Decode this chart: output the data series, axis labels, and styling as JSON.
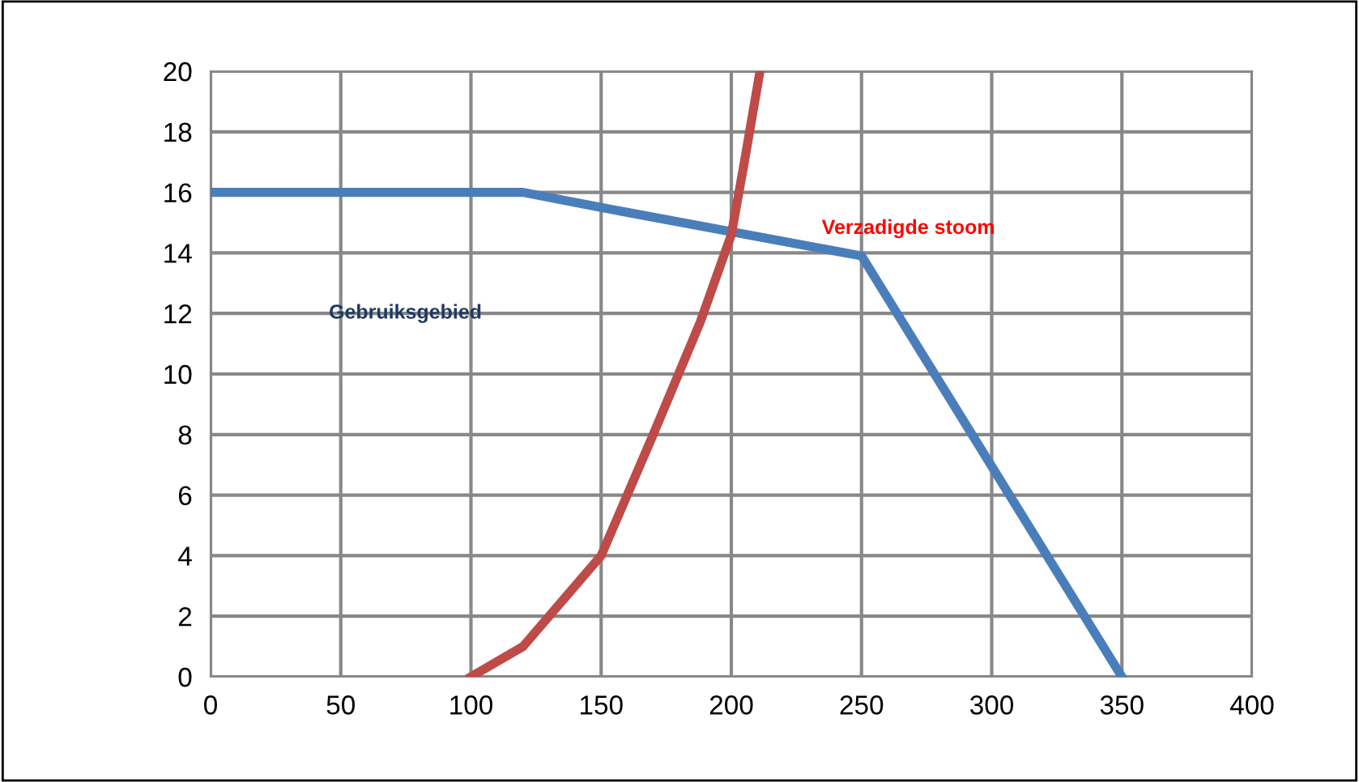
{
  "chart_data": {
    "type": "line",
    "xlim": [
      0,
      400
    ],
    "xticks": [
      0,
      50,
      100,
      150,
      200,
      250,
      300,
      350,
      400
    ],
    "ylim": [
      0,
      20
    ],
    "yticks": [
      0,
      2,
      4,
      6,
      8,
      10,
      12,
      14,
      16,
      18,
      20
    ],
    "grid": true,
    "marker": "none",
    "line_style": "solid",
    "series": [
      {
        "color": "#4a7ebb",
        "x": [
          0,
          120,
          150,
          200,
          250,
          350
        ],
        "values": [
          16,
          16,
          15.5,
          14.7,
          13.9,
          0
        ]
      },
      {
        "color": "#be4b48",
        "x": [
          100,
          120,
          150,
          170,
          188,
          200,
          205,
          211
        ],
        "values": [
          0,
          1,
          4,
          8,
          11.7,
          14.6,
          17,
          20
        ]
      }
    ],
    "annotations": [
      "Gebruiksgebied",
      "Verzadigde stoom"
    ]
  }
}
